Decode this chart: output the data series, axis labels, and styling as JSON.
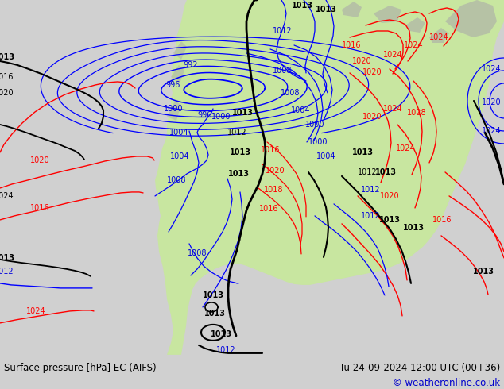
{
  "title_left": "Surface pressure [hPa] EC (AIFS)",
  "title_right": "Tu 24-09-2024 12:00 UTC (00+36)",
  "copyright": "© weatheronline.co.uk",
  "bg_color": "#d0d0d0",
  "land_color": "#c8e6a0",
  "sea_color": "#d8d8d8",
  "footer_bg": "#e8e8e8",
  "footer_text_color": "#000000",
  "copyright_color": "#0000cc",
  "footer_fontsize": 8.5,
  "map_fontsize": 7.0
}
